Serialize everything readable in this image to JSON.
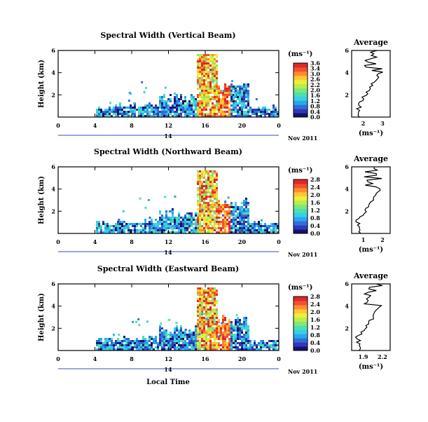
{
  "figure": {
    "xlabel": "Local Time",
    "date_label": "Nov 2011",
    "day_label": "14"
  },
  "colorbar": {
    "unit_label": "(ms⁻¹)",
    "colors": [
      "#14146e",
      "#3238b8",
      "#2f6fd8",
      "#2aa6ee",
      "#37cfe6",
      "#4be0b0",
      "#7ee87a",
      "#b8ee4c",
      "#eeee38",
      "#ffc834",
      "#ff8c2c",
      "#f35030",
      "#e02828"
    ]
  },
  "chart_data": [
    {
      "type": "heatmap",
      "title": "Spectral Width (Vertical Beam)",
      "ylabel": "Height (km)",
      "xlim": [
        0,
        24
      ],
      "ylim": [
        0,
        6
      ],
      "x_ticks": [
        "0",
        "4",
        "8",
        "12",
        "16",
        "20",
        "0"
      ],
      "y_ticks": [
        "6",
        "4",
        "2"
      ],
      "colorbar_ticks": [
        "3.6",
        "3.4",
        "3.0",
        "2.6",
        "2.2",
        "2.0",
        "1.6",
        "1.2",
        "0.8",
        "0.4",
        "0.0"
      ],
      "average": {
        "title": "Average",
        "x_ticks": [
          "2",
          "3"
        ],
        "xlabel": "(ms⁻¹)",
        "y_ticks": [
          "6",
          "4",
          "2"
        ]
      }
    },
    {
      "type": "heatmap",
      "title": "Spectral Width (Northward Beam)",
      "ylabel": "Height (km)",
      "xlim": [
        0,
        24
      ],
      "ylim": [
        0,
        6
      ],
      "x_ticks": [
        "0",
        "4",
        "8",
        "12",
        "16",
        "20",
        "0"
      ],
      "y_ticks": [
        "6",
        "4",
        "2"
      ],
      "colorbar_ticks": [
        "2.8",
        "2.4",
        "2.0",
        "1.6",
        "1.2",
        "0.8",
        "0.4",
        "0.0"
      ],
      "average": {
        "title": "Average",
        "x_ticks": [
          "1",
          "2"
        ],
        "xlabel": "(ms⁻¹)",
        "y_ticks": [
          "6",
          "4",
          "2"
        ]
      }
    },
    {
      "type": "heatmap",
      "title": "Spectral Width (Eastward Beam)",
      "ylabel": "Height (km)",
      "xlim": [
        0,
        24
      ],
      "ylim": [
        0,
        6
      ],
      "x_ticks": [
        "0",
        "4",
        "8",
        "12",
        "16",
        "20",
        "0"
      ],
      "y_ticks": [
        "6",
        "4",
        "2"
      ],
      "colorbar_ticks": [
        "2.8",
        "2.4",
        "2.0",
        "1.6",
        "1.2",
        "0.8",
        "0.4",
        "0.0"
      ],
      "average": {
        "title": "Average",
        "x_ticks": [
          "1.9",
          "2.2"
        ],
        "xlabel": "(ms⁻¹)",
        "y_ticks": [
          "6",
          "4",
          "2"
        ]
      }
    }
  ]
}
